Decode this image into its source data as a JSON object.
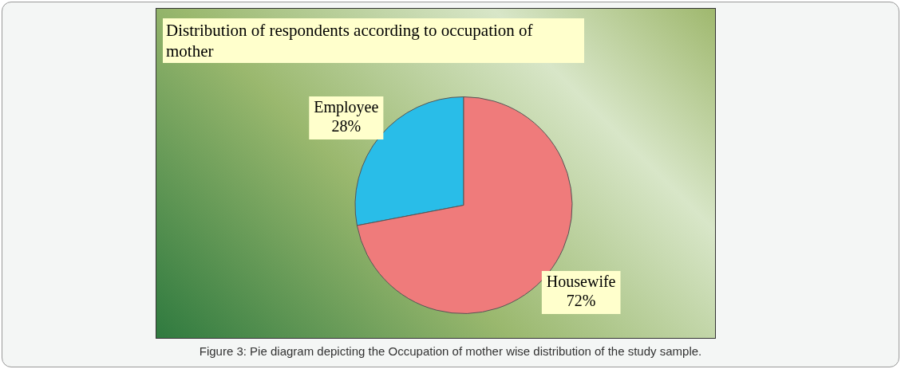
{
  "chart_data": {
    "type": "pie",
    "title": "Distribution of respondents according to occupation of mother",
    "categories": [
      "Employee",
      "Housewife"
    ],
    "values": [
      28,
      72
    ],
    "colors": [
      "#29bde8",
      "#ef7b7b"
    ],
    "value_labels": [
      "28%",
      "72%"
    ],
    "legend": false,
    "annotations": [
      "Figure 3: Pie diagram depicting the Occupation of mother wise distribution of the study sample."
    ]
  }
}
